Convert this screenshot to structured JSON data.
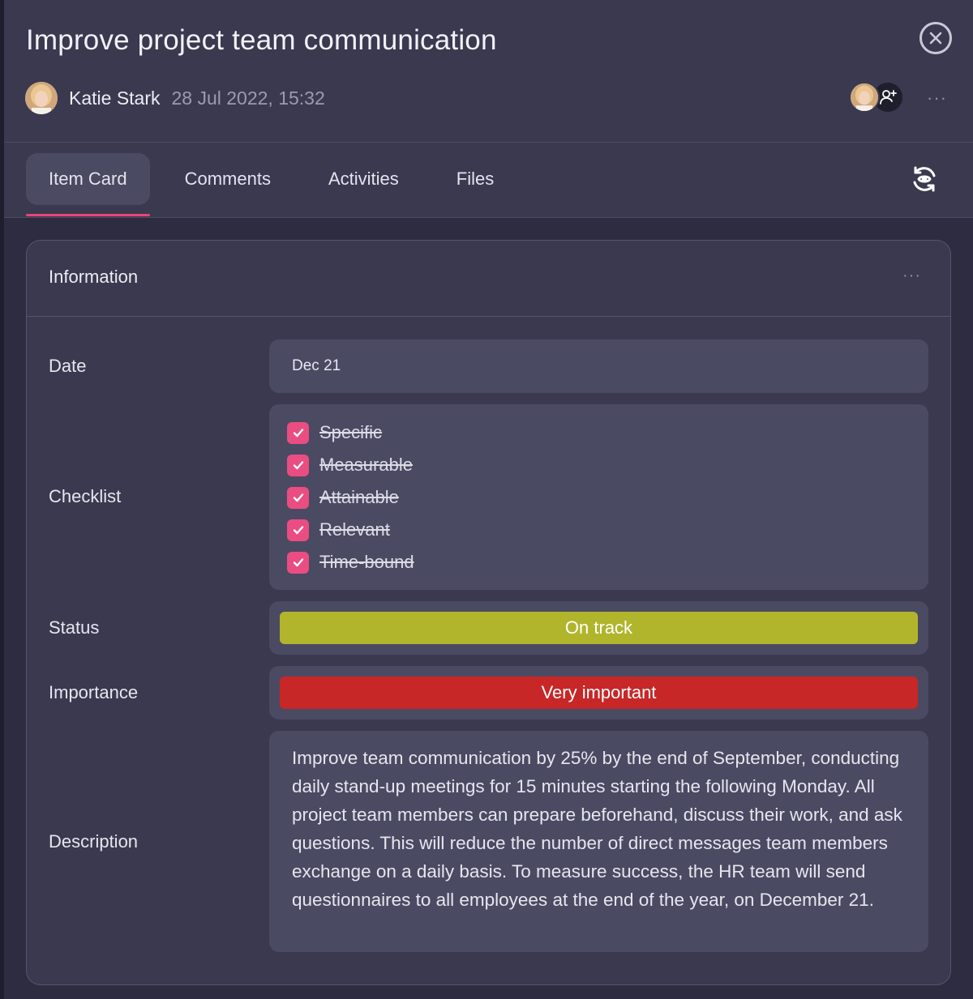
{
  "header": {
    "title": "Improve project team communication",
    "author_name": "Katie Stark",
    "timestamp": "28 Jul 2022, 15:32",
    "more_label": "···"
  },
  "tabs": [
    {
      "label": "Item Card",
      "active": true
    },
    {
      "label": "Comments",
      "active": false
    },
    {
      "label": "Activities",
      "active": false
    },
    {
      "label": "Files",
      "active": false
    }
  ],
  "card": {
    "title": "Information",
    "more_label": "···",
    "fields": {
      "date": {
        "label": "Date",
        "value": "Dec 21"
      },
      "checklist": {
        "label": "Checklist",
        "items": [
          {
            "label": "Specific",
            "checked": true
          },
          {
            "label": "Measurable",
            "checked": true
          },
          {
            "label": "Attainable",
            "checked": true
          },
          {
            "label": "Relevant",
            "checked": true
          },
          {
            "label": "Time-bound",
            "checked": true
          }
        ]
      },
      "status": {
        "label": "Status",
        "value": "On track",
        "color": "#b0b52c"
      },
      "importance": {
        "label": "Importance",
        "value": "Very important",
        "color": "#c72727"
      },
      "description": {
        "label": "Description",
        "value": "Improve team communication by 25% by the end of September, conducting daily stand-up meetings for 15 minutes starting the following Monday. All project team members can prepare beforehand, discuss their work, and ask questions. This will reduce the number of direct messages team members exchange on a daily basis. To measure success, the HR team will send questionnaires to all employees at the end of the year, on December 21."
      }
    }
  },
  "icons": {
    "close": "close-circle-icon",
    "add_member": "user-plus-icon",
    "refresh": "refresh-eye-icon",
    "check": "check-icon"
  },
  "colors": {
    "accent": "#e8447a",
    "checkbox": "#ea4d82",
    "panel": "#3a3950",
    "field": "#4b4a63"
  }
}
